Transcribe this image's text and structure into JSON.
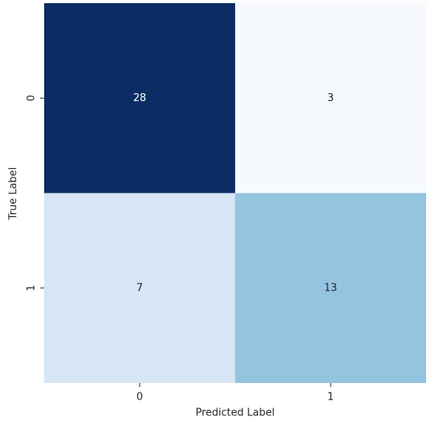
{
  "chart_data": {
    "type": "heatmap",
    "x_categories": [
      "0",
      "1"
    ],
    "y_categories": [
      "0",
      "1"
    ],
    "values": [
      [
        28,
        3
      ],
      [
        7,
        13
      ]
    ],
    "colors": [
      [
        "#0b2d64",
        "#f6faff"
      ],
      [
        "#d6e6f4",
        "#95c4e0"
      ]
    ],
    "xlabel": "Predicted Label",
    "ylabel": "True Label"
  }
}
